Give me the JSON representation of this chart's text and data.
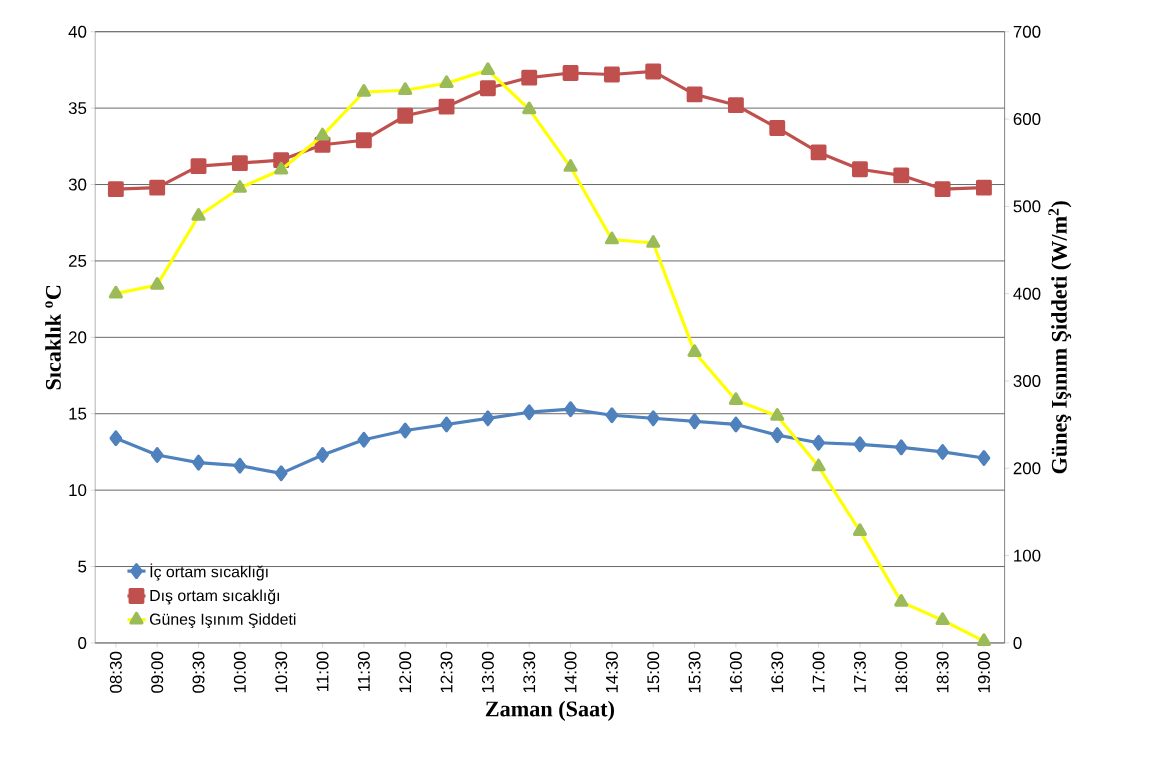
{
  "chart_data": {
    "type": "line",
    "xlabel": "Zaman (Saat)",
    "ylabel": "Sıcaklık $^{o}$C",
    "y2label": "Güneş Işınım Şiddeti  (W/m$^{2}$)",
    "categories": [
      "08:30",
      "09:00",
      "09:30",
      "10:00",
      "10:30",
      "11:00",
      "11:30",
      "12:00",
      "12:30",
      "13:00",
      "13:30",
      "14:00",
      "14:30",
      "15:00",
      "15:30",
      "16:00",
      "16:30",
      "17:00",
      "17:30",
      "18:00",
      "18:30",
      "19:00"
    ],
    "ylim": [
      0,
      40
    ],
    "yticks": [
      0,
      5,
      10,
      15,
      20,
      25,
      30,
      35,
      40
    ],
    "y2lim": [
      0,
      700
    ],
    "y2ticks": [
      0,
      100,
      200,
      300,
      400,
      500,
      600,
      700
    ],
    "grid": "y",
    "legend": "bottom left",
    "line_style": "solid",
    "series": [
      {
        "name": "İç ortam sıcaklığı",
        "color": "#4f81bd",
        "marker": "diamond",
        "values": [
          13.4,
          12.3,
          11.8,
          11.6,
          11.1,
          12.3,
          13.3,
          13.9,
          14.3,
          14.7,
          15.1,
          15.3,
          14.9,
          14.7,
          14.5,
          14.3,
          13.6,
          13.1,
          13.0,
          12.8,
          12.5,
          12.1
        ]
      },
      {
        "name": "Dış ortam sıcaklığı",
        "color": "#c0504d",
        "marker": "square",
        "values": [
          29.7,
          29.8,
          31.2,
          31.4,
          31.6,
          32.6,
          32.9,
          34.5,
          35.1,
          36.3,
          37.0,
          37.3,
          37.2,
          37.4,
          35.9,
          35.2,
          33.7,
          32.1,
          31.0,
          30.6,
          29.7,
          29.8
        ]
      },
      {
        "name": "Güneş Işınım Şiddeti",
        "color": "#ffff00",
        "colors": [
          "#9bbb59",
          "#9bbb59",
          "#9bbb59",
          "#9bbb59",
          "#9bbb59",
          "#9bbb59",
          "#9bbb59",
          "#9bbb59",
          "#9bbb59",
          "#9bbb59",
          "#9bbb59",
          "#9bbb59",
          "#9bbb59",
          "#9bbb59",
          "#9bbb59",
          "#9bbb59",
          "#9bbb59",
          "#9bbb59",
          "#9bbb59",
          "#9bbb59",
          "#9bbb59",
          "#9bbb59"
        ],
        "marker": "triangle",
        "axis": "y2",
        "values": [
          400,
          410,
          489,
          521,
          542,
          581,
          631,
          633,
          641,
          656,
          611,
          545,
          462,
          458,
          333,
          278,
          260,
          202,
          128,
          47,
          26,
          2
        ]
      }
    ]
  }
}
